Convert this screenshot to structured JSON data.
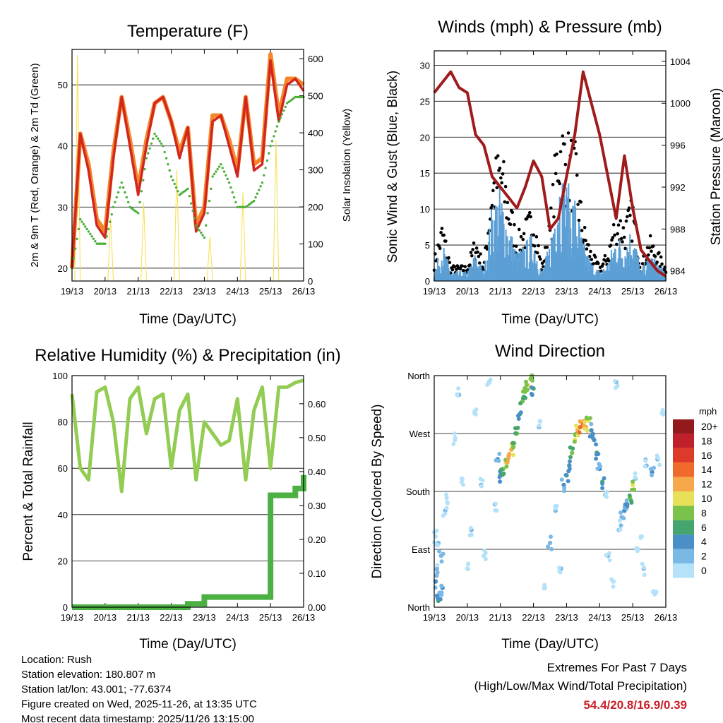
{
  "chart_data": [
    {
      "type": "line",
      "title": "Temperature (F)",
      "xlabel": "Time (Day/UTC)",
      "ylabel": "2m & 9m T (Red, Orange) & 2m Td (Green)",
      "ylabel_right": "Solar Insolation (Yellow)",
      "x_ticks": [
        "19/13",
        "20/13",
        "21/13",
        "22/13",
        "23/13",
        "24/13",
        "25/13",
        "26/13"
      ],
      "x_step_hours": 6,
      "ylim": [
        17.9,
        55.8
      ],
      "yticks": [
        20,
        30,
        40,
        50
      ],
      "ylim_right": [
        0,
        625
      ],
      "yticks_right": [
        0,
        100,
        200,
        300,
        400,
        500,
        600
      ],
      "grid": true,
      "series": [
        {
          "name": "9m T",
          "color": "#f5872a",
          "values": [
            20,
            42,
            37,
            28,
            26,
            39,
            48,
            41,
            33,
            41,
            47,
            48,
            44,
            39,
            43,
            27,
            30,
            45,
            45,
            41,
            36,
            48,
            37,
            38,
            55,
            45,
            51,
            51,
            50
          ]
        },
        {
          "name": "2m T",
          "color": "#d2261f",
          "values": [
            20,
            42,
            36,
            27,
            25,
            38,
            48,
            40,
            32,
            40,
            47,
            48,
            44,
            38,
            43,
            26,
            29,
            44,
            45,
            40,
            35,
            48,
            36,
            37,
            54,
            44,
            50,
            51,
            49
          ]
        },
        {
          "name": "2m Td",
          "color": "#4caf3a",
          "values": [
            20,
            28,
            26,
            24,
            24,
            30,
            34,
            30,
            29,
            38,
            42,
            40,
            35,
            32,
            33,
            27,
            25,
            35,
            37,
            34,
            30,
            30,
            31,
            34,
            40,
            44,
            47,
            48,
            48
          ]
        }
      ],
      "solar_peaks": {
        "color": "#f7df4a",
        "day_hours": [
          4,
          28,
          52,
          76,
          100,
          124,
          148
        ],
        "values": [
          610,
          170,
          210,
          300,
          120,
          240,
          380
        ]
      }
    },
    {
      "type": "scatter",
      "title": "Winds (mph) & Pressure (mb)",
      "xlabel": "Time (Day/UTC)",
      "ylabel": "Sonic Wind & Gust (Blue, Black)",
      "ylabel_right": "Station Pressure (Maroon)",
      "x_ticks": [
        "19/13",
        "20/13",
        "21/13",
        "22/13",
        "23/13",
        "24/13",
        "25/13",
        "26/13"
      ],
      "x_step_hours": 6,
      "ylim": [
        0,
        32
      ],
      "yticks": [
        0,
        5,
        10,
        15,
        20,
        25,
        30
      ],
      "ylim_right": [
        983.04,
        1005.0
      ],
      "yticks_right": [
        984,
        988,
        992,
        996,
        1000,
        1004
      ],
      "series": [
        {
          "name": "Sonic Wind",
          "color": "#5b9fd5",
          "values": [
            1,
            4,
            1,
            1,
            1,
            3,
            1,
            8,
            10,
            6,
            3,
            4,
            5,
            1,
            4,
            12,
            10,
            9,
            4,
            2,
            1,
            2,
            5,
            4,
            6,
            1,
            3,
            2,
            1
          ]
        },
        {
          "name": "Gust",
          "color": "#000000",
          "values": [
            3,
            8,
            2,
            2,
            2,
            6,
            2,
            15,
            18,
            12,
            6,
            8,
            10,
            2,
            8,
            22,
            20,
            18,
            8,
            4,
            2,
            4,
            10,
            8,
            11,
            2,
            6,
            4,
            2
          ]
        },
        {
          "name": "Station Pressure",
          "color": "#a01b1b",
          "values": [
            1001,
            1002,
            1003,
            1001.5,
            1001,
            997,
            996,
            993,
            992,
            991,
            990,
            992,
            994.5,
            993,
            988,
            989,
            993,
            997,
            1003,
            1000,
            997,
            993,
            989,
            995,
            990,
            986,
            985,
            984,
            983.5
          ]
        }
      ]
    },
    {
      "type": "line",
      "title": "Relative Humidity (%) & Precipitation (in)",
      "xlabel": "Time (Day/UTC)",
      "ylabel": "Percent & Total Rainfall",
      "x_ticks": [
        "19/13",
        "20/13",
        "21/13",
        "22/13",
        "23/13",
        "24/13",
        "25/13",
        "26/13"
      ],
      "x_step_hours": 6,
      "ylim": [
        0,
        100
      ],
      "yticks": [
        0,
        20,
        40,
        60,
        80,
        100
      ],
      "ylim_right": [
        0,
        0.683
      ],
      "yticks_right": [
        "0.00",
        "0.10",
        "0.20",
        "0.30",
        "0.40",
        "0.50",
        "0.60"
      ],
      "series": [
        {
          "name": "Relative Humidity",
          "color": "#92cc52",
          "values": [
            92,
            60,
            55,
            93,
            95,
            80,
            50,
            90,
            95,
            75,
            90,
            92,
            60,
            85,
            92,
            55,
            80,
            75,
            70,
            72,
            90,
            55,
            85,
            95,
            60,
            95,
            95,
            97,
            98
          ]
        },
        {
          "name": "Total Precipitation",
          "color": "#4cb043",
          "values": [
            0,
            0,
            0,
            0,
            0,
            0,
            0,
            0,
            0,
            0,
            0,
            0,
            0,
            0,
            0.01,
            0.01,
            0.03,
            0.03,
            0.03,
            0.03,
            0.03,
            0.03,
            0.03,
            0.03,
            0.33,
            0.33,
            0.33,
            0.35,
            0.39
          ]
        }
      ]
    },
    {
      "type": "scatter",
      "title": "Wind Direction",
      "xlabel": "Time (Day/UTC)",
      "ylabel": "Direction (Colored By Speed)",
      "x_ticks": [
        "19/13",
        "20/13",
        "21/13",
        "22/13",
        "23/13",
        "24/13",
        "25/13",
        "26/13"
      ],
      "ylim": [
        0,
        360
      ],
      "yticks": [
        "North",
        "East",
        "South",
        "West",
        "North"
      ],
      "legend": {
        "title": "mph",
        "labels": [
          "20+",
          "18",
          "16",
          "14",
          "12",
          "10",
          "8",
          "6",
          "4",
          "2",
          "0"
        ],
        "colors": [
          "#921a1d",
          "#c0202a",
          "#de3a2a",
          "#f06a2b",
          "#f7a84a",
          "#e8e059",
          "#7bc24b",
          "#46a56e",
          "#4a8fc8",
          "#7ab8e6",
          "#b5e2f8"
        ]
      },
      "points_hours_dir_speed": [
        [
          1,
          40,
          4
        ],
        [
          2,
          60,
          3
        ],
        [
          3,
          100,
          2
        ],
        [
          4,
          20,
          5
        ],
        [
          5,
          80,
          3
        ],
        [
          6,
          30,
          4
        ],
        [
          1,
          110,
          1
        ],
        [
          8,
          150,
          2
        ],
        [
          9,
          170,
          1
        ],
        [
          3,
          10,
          6
        ],
        [
          15,
          260,
          1
        ],
        [
          18,
          330,
          2
        ],
        [
          20,
          200,
          1
        ],
        [
          24,
          60,
          1
        ],
        [
          27,
          120,
          2
        ],
        [
          30,
          300,
          1
        ],
        [
          34,
          190,
          2
        ],
        [
          36,
          80,
          1
        ],
        [
          40,
          350,
          2
        ],
        [
          44,
          160,
          3
        ],
        [
          46,
          230,
          4
        ],
        [
          48,
          205,
          6
        ],
        [
          50,
          215,
          8
        ],
        [
          52,
          225,
          10
        ],
        [
          54,
          235,
          13
        ],
        [
          56,
          245,
          12
        ],
        [
          58,
          255,
          9
        ],
        [
          60,
          270,
          8
        ],
        [
          62,
          300,
          6
        ],
        [
          64,
          320,
          8
        ],
        [
          66,
          335,
          9
        ],
        [
          68,
          345,
          10
        ],
        [
          70,
          355,
          9
        ],
        [
          72,
          340,
          6
        ],
        [
          76,
          280,
          2
        ],
        [
          80,
          30,
          2
        ],
        [
          84,
          100,
          3
        ],
        [
          88,
          150,
          2
        ],
        [
          92,
          60,
          2
        ],
        [
          94,
          190,
          4
        ],
        [
          96,
          205,
          6
        ],
        [
          98,
          220,
          6
        ],
        [
          100,
          240,
          8
        ],
        [
          102,
          260,
          10
        ],
        [
          104,
          275,
          12
        ],
        [
          106,
          280,
          15
        ],
        [
          108,
          285,
          14
        ],
        [
          110,
          280,
          12
        ],
        [
          112,
          290,
          10
        ],
        [
          114,
          275,
          5
        ],
        [
          116,
          260,
          5
        ],
        [
          118,
          240,
          6
        ],
        [
          120,
          215,
          4
        ],
        [
          122,
          195,
          6
        ],
        [
          124,
          175,
          3
        ],
        [
          126,
          80,
          2
        ],
        [
          130,
          40,
          1
        ],
        [
          132,
          350,
          2
        ],
        [
          134,
          120,
          3
        ],
        [
          136,
          140,
          3
        ],
        [
          138,
          150,
          4
        ],
        [
          140,
          160,
          5
        ],
        [
          142,
          170,
          8
        ],
        [
          144,
          190,
          10
        ],
        [
          146,
          200,
          2
        ],
        [
          150,
          110,
          1
        ],
        [
          154,
          220,
          3
        ],
        [
          158,
          210,
          4
        ],
        [
          162,
          230,
          2
        ],
        [
          166,
          300,
          1
        ],
        [
          160,
          20,
          1
        ],
        [
          152,
          60,
          2
        ],
        [
          148,
          90,
          1
        ]
      ]
    }
  ],
  "footer": {
    "location": "Location: Rush",
    "elevation": "Station elevation: 180.807 m",
    "latlon": "Station lat/lon: 43.001; -77.6374",
    "created": "Figure created on Wed, 2025-11-26, at 13:35 UTC",
    "recent": "Most recent data timestamp: 2025/11/26 13:15:00"
  },
  "extremes": {
    "title": "Extremes For Past 7 Days",
    "subtitle": "(High/Low/Max Wind/Total Precipitation)",
    "values": "54.4/20.8/16.9/0.39"
  }
}
